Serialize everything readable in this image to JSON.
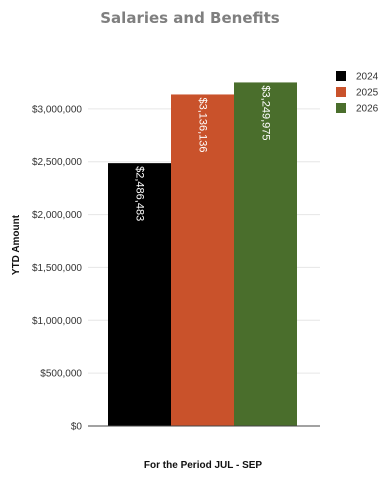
{
  "chart_data": {
    "type": "bar",
    "title": "Salaries and Benefits",
    "xlabel": "For the Period JUL - SEP",
    "ylabel": "YTD Amount",
    "ylim": [
      0,
      3500000
    ],
    "y_ticks": [
      0,
      500000,
      1000000,
      1500000,
      2000000,
      2500000,
      3000000
    ],
    "y_tick_labels": [
      "$0",
      "$500,000",
      "$1,000,000",
      "$1,500,000",
      "$2,000,000",
      "$2,500,000",
      "$3,000,000"
    ],
    "grid": true,
    "legend_position": "top-right",
    "series": [
      {
        "name": "2024",
        "values": [
          2486483
        ],
        "label": "$2,486,483",
        "color": "#000000"
      },
      {
        "name": "2025",
        "values": [
          3136136
        ],
        "label": "$3,136,136",
        "color": "#c9522b"
      },
      {
        "name": "2026",
        "values": [
          3249975
        ],
        "label": "$3,249,975",
        "color": "#4a6e2c"
      }
    ]
  }
}
